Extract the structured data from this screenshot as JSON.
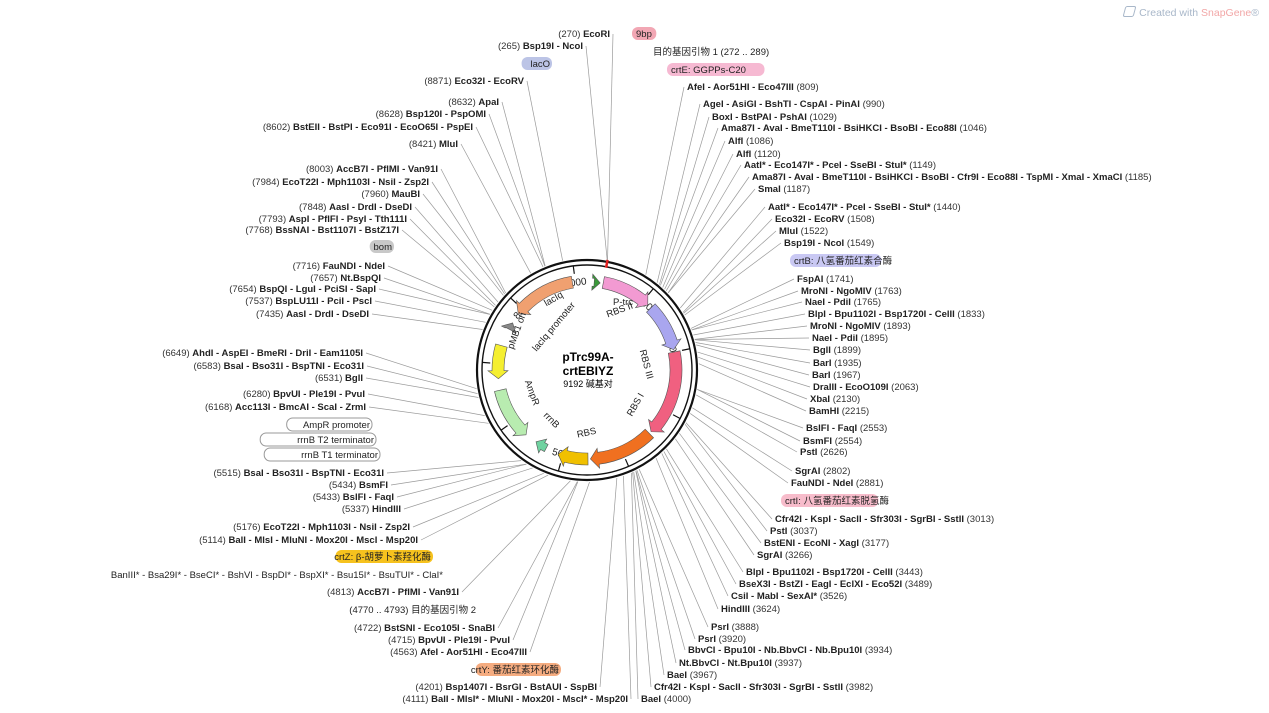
{
  "watermark": {
    "prefix": "Created with ",
    "brand": "SnapGene",
    "suffix": "®"
  },
  "plasmid": {
    "name_line1": "pTrc99A-",
    "name_line2": "crtEBIYZ",
    "size_text": "9192 碱基对"
  },
  "ring_ticks": [
    "1000",
    "2000",
    "3000",
    "4000",
    "5000",
    "6000",
    "7000",
    "8000",
    "9000"
  ],
  "features": [
    {
      "label": "P-trc",
      "color": "#3a9a3a"
    },
    {
      "label": "RBS II",
      "color": "#f29ad2"
    },
    {
      "label": "RBS III",
      "color": "#a9a6ef"
    },
    {
      "label": "RBS I",
      "color": "#f06080"
    },
    {
      "label": "RBS",
      "color": "#f07020"
    },
    {
      "label": "rrnB",
      "color": "#f0c000"
    },
    {
      "label": "AmpR",
      "color": "#b8ecb0"
    },
    {
      "label": "pMB1 ori",
      "color": "#f5ef30"
    },
    {
      "label": "lacIq promoter",
      "color": "#888888"
    },
    {
      "label": "lacIq",
      "color": "#f0a070"
    }
  ],
  "left_labels": [
    {
      "text": "(270)  EcoRI",
      "bold": false
    },
    {
      "text": "(265)  Bsp19I - NcoI",
      "bold": false
    },
    {
      "text": "(8871)  Eco32I - EcoRV",
      "bold": false
    },
    {
      "text": "(8632)  ApaI",
      "bold": false
    },
    {
      "text": "(8628)  Bsp120I - PspOMI",
      "bold": false
    },
    {
      "text": "(8602)  BstEII - BstPI - Eco91I - EcoO65I - PspEI",
      "bold": false
    },
    {
      "text": "(8421)  MluI",
      "bold": false
    },
    {
      "text": "(8003)  AccB7I - PflMI - Van91I",
      "bold": false
    },
    {
      "text": "(7984)  EcoT22I - Mph1103I - NsiI - Zsp2I",
      "bold": false
    },
    {
      "text": "(7960)  MauBI",
      "bold": false
    },
    {
      "text": "(7848)  AasI - DrdI - DseDI",
      "bold": false
    },
    {
      "text": "(7793)  AspI - PflFI - PsyI - Tth111I",
      "bold": false
    },
    {
      "text": "(7768)  BssNAI - Bst1107I - BstZ17I",
      "bold": false
    },
    {
      "text": "(7716)  FauNDI - NdeI",
      "bold": false
    },
    {
      "text": "(7657)  Nt.BspQI",
      "bold": false
    },
    {
      "text": "(7654)  BspQI - LguI - PciSI - SapI",
      "bold": false
    },
    {
      "text": "(7537)  BspLU11I - PciI - PscI",
      "bold": false
    },
    {
      "text": "(7435)  AasI - DrdI - DseDI",
      "bold": false
    },
    {
      "text": "(6649)  AhdI - AspEI - BmeRI - DriI - Eam1105I",
      "bold": false
    },
    {
      "text": "(6583)  BsaI - Bso31I - BspTNI - Eco31I",
      "bold": false
    },
    {
      "text": "(6531)  BglI",
      "bold": false
    },
    {
      "text": "(6280)  BpvUI - Ple19I - PvuI",
      "bold": false
    },
    {
      "text": "(6168)  Acc113I - BmcAI - ScaI - ZrmI",
      "bold": false
    },
    {
      "text": "(5515)  BsaI - Bso31I - BspTNI - Eco31I",
      "bold": false
    },
    {
      "text": "(5434)  BsmFI",
      "bold": false
    },
    {
      "text": "(5433)  BslFI - FaqI",
      "bold": false
    },
    {
      "text": "(5337)  HindIII",
      "bold": false
    },
    {
      "text": "(5176)  EcoT22I - Mph1103I - NsiI - Zsp2I",
      "bold": false
    },
    {
      "text": "(5114)  BalI - MlsI - MluNI - Mox20I - MscI - Msp20I",
      "bold": false
    },
    {
      "text": "(4813)  AccB7I - PflMI - Van91I",
      "bold": false
    },
    {
      "text": "(4722)  BstSNI - Eco105I - SnaBI",
      "bold": false
    },
    {
      "text": "(4715)  BpvUI - Ple19I - PvuI",
      "bold": false
    },
    {
      "text": "(4563)  AfeI - Aor51HI - Eco47III",
      "bold": false
    },
    {
      "text": "(4201)  Bsp1407I - BsrGI - BstAUI - SspBI",
      "bold": false
    },
    {
      "text": "(4111)  BalI - MlsI* - MluNI - Mox20I - MscI* - Msp20I",
      "bold": false
    }
  ],
  "left_boxes": {
    "lacO": "lacO",
    "bom": "bom",
    "ampr_promoter": "AmpR promoter",
    "rrnb_t2": "rrnB T2 terminator",
    "rrnb_t1": "rrnB T1 terminator",
    "crtZ": "crtZ: β-胡萝卜素羟化酶",
    "crtY": "crtY: 番茄红素环化酶",
    "primer2": "(4770 .. 4793)  目的基因引物 2",
    "cut_row": "BanIII* - Bsa29I* - BseCI* - BshVI - BspDI* - BspXI* - Bsu15I* - BsuTUI* - ClaI*"
  },
  "right_labels": [
    {
      "text": "AfeI - Aor51HI - Eco47III  (809)"
    },
    {
      "text": "AgeI - AsiGI - BshTI - CspAI - PinAI  (990)"
    },
    {
      "text": "BoxI - BstPAI - PshAI  (1029)"
    },
    {
      "text": "Ama87I - AvaI - BmeT110I - BsiHKCI - BsoBI - Eco88I  (1046)"
    },
    {
      "text": "AlfI  (1086)"
    },
    {
      "text": "AlfI  (1120)"
    },
    {
      "text": "AatI* - Eco147I* - PceI - SseBI - StuI*  (1149)"
    },
    {
      "text": "Ama87I - AvaI - BmeT110I - BsiHKCI - BsoBI - Cfr9I - Eco88I - TspMI - XmaI - XmaCI  (1185)"
    },
    {
      "text": "SmaI  (1187)"
    },
    {
      "text": "AatI* - Eco147I* - PceI - SseBI - StuI*  (1440)"
    },
    {
      "text": "Eco32I - EcoRV  (1508)"
    },
    {
      "text": "MluI  (1522)"
    },
    {
      "text": "Bsp19I - NcoI  (1549)"
    },
    {
      "text": "FspAI  (1741)"
    },
    {
      "text": "MroNI - NgoMIV  (1763)"
    },
    {
      "text": "NaeI - PdiI  (1765)"
    },
    {
      "text": "BlpI - Bpu1102I - Bsp1720I - CelII  (1833)"
    },
    {
      "text": "MroNI - NgoMIV  (1893)"
    },
    {
      "text": "NaeI - PdiI  (1895)"
    },
    {
      "text": "BglI  (1899)"
    },
    {
      "text": "BarI  (1935)"
    },
    {
      "text": "BarI  (1967)"
    },
    {
      "text": "DraIII - EcoO109I  (2063)"
    },
    {
      "text": "XbaI  (2130)"
    },
    {
      "text": "BamHI  (2215)"
    },
    {
      "text": "BslFI - FaqI  (2553)"
    },
    {
      "text": "BsmFI  (2554)"
    },
    {
      "text": "PstI  (2626)"
    },
    {
      "text": "SgrAI  (2802)"
    },
    {
      "text": "FauNDI - NdeI  (2881)"
    },
    {
      "text": "Cfr42I - KspI - SacII - Sfr303I - SgrBI - SstII  (3013)"
    },
    {
      "text": "PstI  (3037)"
    },
    {
      "text": "BstENI - EcoNI - XagI  (3177)"
    },
    {
      "text": "SgrAI  (3266)"
    },
    {
      "text": "BlpI - Bpu1102I - Bsp1720I - CelII  (3443)"
    },
    {
      "text": "BseX3I - BstZI - EagI - EclXI - Eco52I  (3489)"
    },
    {
      "text": "CsiI - MabI - SexAI*  (3526)"
    },
    {
      "text": "HindIII  (3624)"
    },
    {
      "text": "PsrI  (3888)"
    },
    {
      "text": "PsrI  (3920)"
    },
    {
      "text": "BbvCI - Bpu10I - Nb.BbvCI - Nb.Bpu10I  (3934)"
    },
    {
      "text": "Nt.BbvCI - Nt.Bpu10I  (3937)"
    },
    {
      "text": "BaeI  (3967)"
    },
    {
      "text": "Cfr42I - KspI - SacII - Sfr303I - SgrBI - SstII  (3982)"
    },
    {
      "text": "BaeI  (4000)"
    }
  ],
  "right_boxes": {
    "bp9": "9bp",
    "primer1": "目的基因引物 1  (272 .. 289)",
    "crtE": "crtE: GGPPs-C20",
    "crtB": "crtB: 八氢番茄红素合酶",
    "crtI": "crtI: 八氢番茄红素脱氢酶"
  },
  "colors": {
    "crtE_box": "#f6b9d2",
    "crtB_box": "#c9c8f3",
    "crtI_box": "#f7bccb",
    "crtZ_box": "#f6c21e",
    "crtY_box": "#f5ac80",
    "lacO_box": "#bcc4e6",
    "primer": "#a33cc4"
  }
}
